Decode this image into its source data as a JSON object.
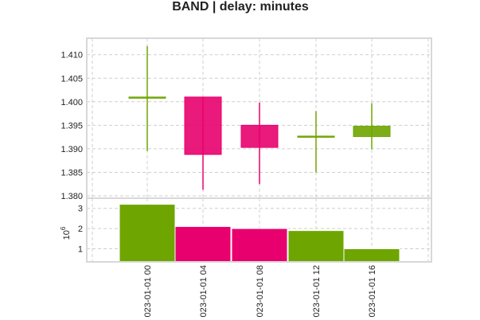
{
  "chart_data": {
    "type": "candlestick",
    "title": "BAND | delay: minutes",
    "x": [
      "023-01-01 00",
      "023-01-01 04",
      "023-01-01 08",
      "023-01-01 12",
      "023-01-01 16"
    ],
    "price": {
      "ylim": [
        1.3795,
        1.4135
      ],
      "yticks": [
        "1.380",
        "1.385",
        "1.390",
        "1.395",
        "1.400",
        "1.405",
        "1.410"
      ],
      "candles": [
        {
          "open": 1.401,
          "high": 1.4118,
          "low": 1.3895,
          "close": 1.401
        },
        {
          "open": 1.401,
          "high": 1.401,
          "low": 1.3813,
          "close": 1.3888
        },
        {
          "open": 1.395,
          "high": 1.3998,
          "low": 1.3825,
          "close": 1.3903
        },
        {
          "open": 1.3927,
          "high": 1.398,
          "low": 1.385,
          "close": 1.3927
        },
        {
          "open": 1.3926,
          "high": 1.3997,
          "low": 1.3899,
          "close": 1.3948
        }
      ]
    },
    "volume": {
      "ylim": [
        0.35,
        3.5
      ],
      "yticks": [
        "1",
        "2",
        "3"
      ],
      "multiplier": "10",
      "exponent": "6",
      "values": [
        3.2,
        2.1,
        2.0,
        1.9,
        1.0
      ]
    },
    "colors": {
      "down": "#e8006e",
      "up": "#6fa500"
    },
    "grid": true
  }
}
